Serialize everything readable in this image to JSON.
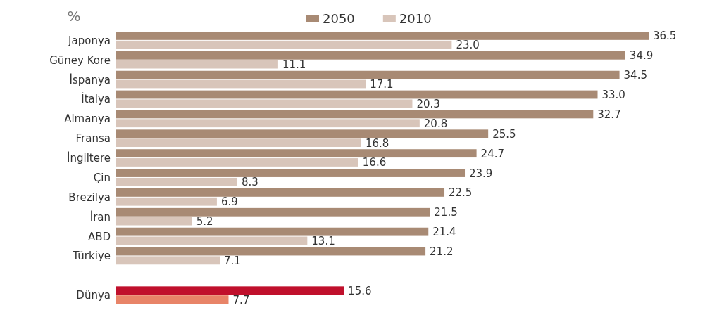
{
  "chart_data": {
    "type": "bar",
    "orientation": "horizontal",
    "ylabel": "%",
    "legend": "top",
    "categories": [
      "Japonya",
      "Güney Kore",
      "İspanya",
      "İtalya",
      "Almanya",
      "Fransa",
      "İngiltere",
      "Çin",
      "Brezilya",
      "İran",
      "ABD",
      "Türkiye",
      null,
      "Dünya"
    ],
    "series": [
      {
        "name": "2050",
        "color": "#a88a74",
        "colors": [
          "#a88a74",
          "#a88a74",
          "#a88a74",
          "#a88a74",
          "#a88a74",
          "#a88a74",
          "#a88a74",
          "#a88a74",
          "#a88a74",
          "#a88a74",
          "#a88a74",
          "#a88a74",
          null,
          "#c0102c"
        ],
        "values": [
          36.5,
          34.9,
          34.5,
          33.0,
          32.7,
          25.5,
          24.7,
          23.9,
          22.5,
          21.5,
          21.4,
          21.2,
          null,
          15.6
        ],
        "value_labels": [
          "36.5",
          "34.9",
          "34.5",
          "33.0",
          "32.7",
          "25.5",
          "24.7",
          "23.9",
          "22.5",
          "21.5",
          "21.4",
          "21.2",
          null,
          "15.6"
        ]
      },
      {
        "name": "2010",
        "color": "#d8c5ba",
        "colors": [
          "#d8c5ba",
          "#d8c5ba",
          "#d8c5ba",
          "#d8c5ba",
          "#d8c5ba",
          "#d8c5ba",
          "#d8c5ba",
          "#d8c5ba",
          "#d8c5ba",
          "#d8c5ba",
          "#d8c5ba",
          "#d8c5ba",
          null,
          "#e88468"
        ],
        "values": [
          23.0,
          11.1,
          17.1,
          20.3,
          20.8,
          16.8,
          16.6,
          8.3,
          6.9,
          5.2,
          13.1,
          7.1,
          null,
          7.7
        ],
        "value_labels": [
          "23.0",
          "11.1",
          "17.1",
          "20.3",
          "20.8",
          "16.8",
          "16.6",
          "8.3",
          "6.9",
          "5.2",
          "13.1",
          "7.1",
          null,
          "7.7"
        ]
      }
    ]
  }
}
